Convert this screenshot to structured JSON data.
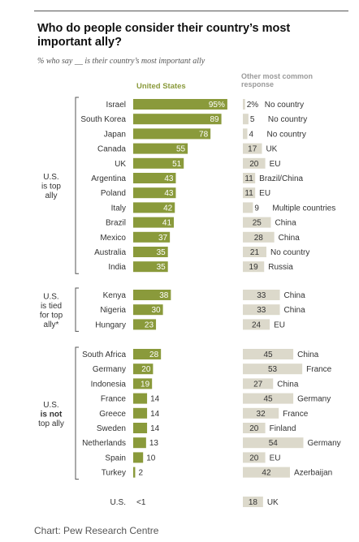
{
  "chart_data": {
    "type": "bar",
    "title": "Who do people consider their country’s most important ally?",
    "subtitle": "% who say __ is their country’s most important ally",
    "series": [
      {
        "name": "United States"
      },
      {
        "name": "Other most common response"
      }
    ],
    "groups": [
      {
        "label": [
          "U.S.",
          "is top",
          "ally"
        ],
        "rows": [
          {
            "country": "Israel",
            "us": 95,
            "us_label": "95%",
            "other": 2,
            "other_label": "2%",
            "other_name": "No country"
          },
          {
            "country": "South Korea",
            "us": 89,
            "us_label": "89",
            "other": 5,
            "other_label": "5",
            "other_name": "No country"
          },
          {
            "country": "Japan",
            "us": 78,
            "us_label": "78",
            "other": 4,
            "other_label": "4",
            "other_name": "No country"
          },
          {
            "country": "Canada",
            "us": 55,
            "us_label": "55",
            "other": 17,
            "other_label": "17",
            "other_name": "UK"
          },
          {
            "country": "UK",
            "us": 51,
            "us_label": "51",
            "other": 20,
            "other_label": "20",
            "other_name": "EU"
          },
          {
            "country": "Argentina",
            "us": 43,
            "us_label": "43",
            "other": 11,
            "other_label": "11",
            "other_name": "Brazil/China"
          },
          {
            "country": "Poland",
            "us": 43,
            "us_label": "43",
            "other": 11,
            "other_label": "11",
            "other_name": "EU"
          },
          {
            "country": "Italy",
            "us": 42,
            "us_label": "42",
            "other": 9,
            "other_label": "9",
            "other_name": "Multiple countries"
          },
          {
            "country": "Brazil",
            "us": 41,
            "us_label": "41",
            "other": 25,
            "other_label": "25",
            "other_name": "China"
          },
          {
            "country": "Mexico",
            "us": 37,
            "us_label": "37",
            "other": 28,
            "other_label": "28",
            "other_name": "China"
          },
          {
            "country": "Australia",
            "us": 35,
            "us_label": "35",
            "other": 21,
            "other_label": "21",
            "other_name": "No country"
          },
          {
            "country": "India",
            "us": 35,
            "us_label": "35",
            "other": 19,
            "other_label": "19",
            "other_name": "Russia"
          }
        ]
      },
      {
        "label": [
          "U.S.",
          "is tied",
          "for top",
          "ally*"
        ],
        "rows": [
          {
            "country": "Kenya",
            "us": 38,
            "us_label": "38",
            "other": 33,
            "other_label": "33",
            "other_name": "China"
          },
          {
            "country": "Nigeria",
            "us": 30,
            "us_label": "30",
            "other": 33,
            "other_label": "33",
            "other_name": "China"
          },
          {
            "country": "Hungary",
            "us": 23,
            "us_label": "23",
            "other": 24,
            "other_label": "24",
            "other_name": "EU"
          }
        ]
      },
      {
        "label": [
          "U.S.",
          "is not",
          "top ally"
        ],
        "label_bold_index": 1,
        "rows": [
          {
            "country": "South Africa",
            "us": 28,
            "us_label": "28",
            "other": 45,
            "other_label": "45",
            "other_name": "China"
          },
          {
            "country": "Germany",
            "us": 20,
            "us_label": "20",
            "other": 53,
            "other_label": "53",
            "other_name": "France"
          },
          {
            "country": "Indonesia",
            "us": 19,
            "us_label": "19",
            "other": 27,
            "other_label": "27",
            "other_name": "China"
          },
          {
            "country": "France",
            "us": 14,
            "us_label": "14",
            "other": 45,
            "other_label": "45",
            "other_name": "Germany"
          },
          {
            "country": "Greece",
            "us": 14,
            "us_label": "14",
            "other": 32,
            "other_label": "32",
            "other_name": "France"
          },
          {
            "country": "Sweden",
            "us": 14,
            "us_label": "14",
            "other": 20,
            "other_label": "20",
            "other_name": "Finland"
          },
          {
            "country": "Netherlands",
            "us": 13,
            "us_label": "13",
            "other": 54,
            "other_label": "54",
            "other_name": "Germany"
          },
          {
            "country": "Spain",
            "us": 10,
            "us_label": "10",
            "other": 20,
            "other_label": "20",
            "other_name": "EU"
          },
          {
            "country": "Turkey",
            "us": 2,
            "us_label": "2",
            "other": 42,
            "other_label": "42",
            "other_name": "Azerbaijan"
          }
        ]
      },
      {
        "label": [],
        "rows": [
          {
            "country": "U.S.",
            "us": 0,
            "us_label": "<1",
            "other": 18,
            "other_label": "18",
            "other_name": "UK"
          }
        ]
      }
    ],
    "xlim": [
      0,
      100
    ],
    "colors": {
      "us": "#8a9a3b",
      "other": "#dcd9cb"
    }
  },
  "header": {
    "col_us": "United States",
    "col_other": "Other most common response"
  },
  "source": "Chart: Pew Research Centre"
}
